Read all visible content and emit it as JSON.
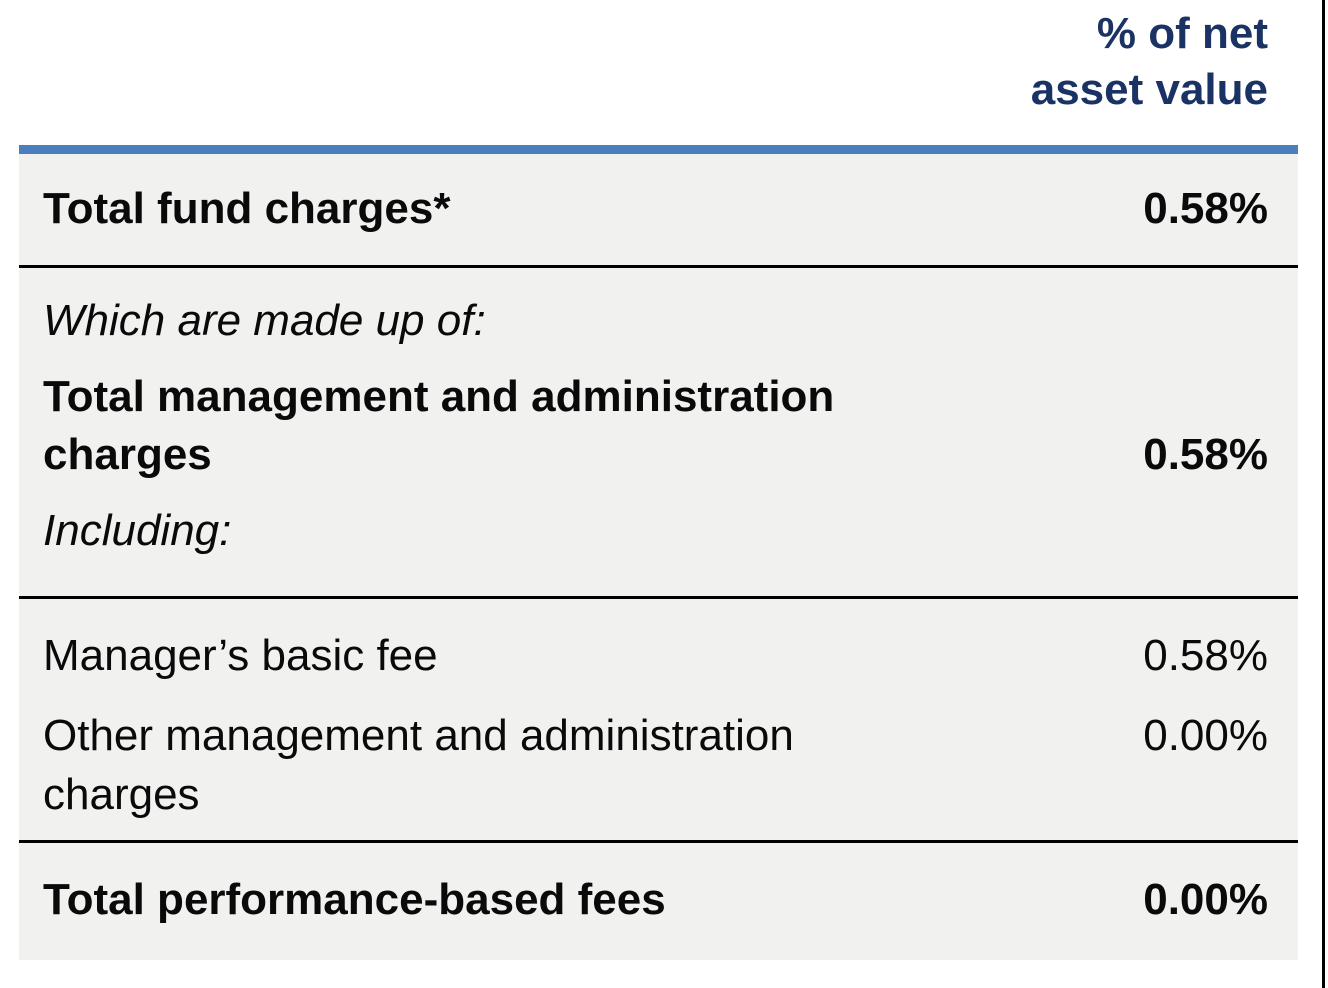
{
  "colors": {
    "accent_bar": "#4a7ebc",
    "header_text": "#1b3364",
    "body_bg": "#f1f1f0",
    "divider": "#000000",
    "text": "#0a0a0a",
    "page_bg": "#ffffff"
  },
  "table": {
    "header": {
      "column_label_line1": "% of net",
      "column_label_line2": "asset value"
    },
    "rows": {
      "total_fund_charges": {
        "label": "Total fund charges*",
        "value": "0.58%"
      },
      "note_made_up_of": "Which are made up of:",
      "total_management_admin": {
        "label": "Total management and administration charges",
        "value": "0.58%"
      },
      "note_including": "Including:",
      "managers_basic_fee": {
        "label": "Manager’s basic fee",
        "value": "0.58%"
      },
      "other_management_admin": {
        "label": "Other management and administration charges",
        "value": "0.00%"
      },
      "total_performance_fees": {
        "label": "Total performance-based fees",
        "value": "0.00%"
      }
    }
  }
}
